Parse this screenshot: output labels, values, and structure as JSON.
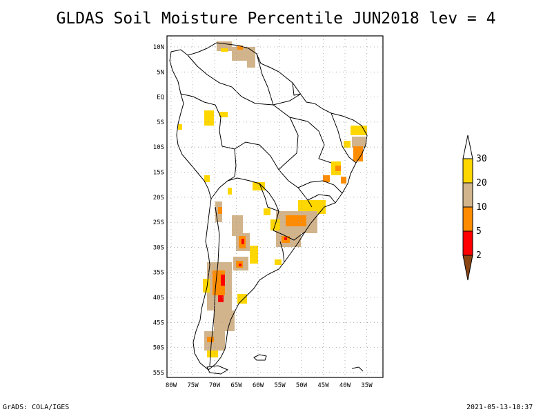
{
  "title": "GLDAS Soil Moisture Percentile JUN2018 lev = 4",
  "footer": {
    "left": "GrADS: COLA/IGES",
    "right": "2021-05-13-18:37"
  },
  "axes": {
    "x_ticks": [
      "80W",
      "75W",
      "70W",
      "65W",
      "60W",
      "55W",
      "50W",
      "45W",
      "40W",
      "35W"
    ],
    "y_ticks": [
      "10N",
      "5N",
      "EQ",
      "5S",
      "10S",
      "15S",
      "20S",
      "25S",
      "30S",
      "35S",
      "40S",
      "45S",
      "50S",
      "55S"
    ],
    "lon_range": [
      -80,
      -33
    ],
    "lat_range": [
      -56,
      12
    ],
    "grid": "dotted"
  },
  "legend": {
    "labels": [
      "30",
      "20",
      "10",
      "5",
      "2"
    ],
    "colors": {
      "above_30": "#ffffff",
      "20_30": "#ffd700",
      "10_20": "#d2b48c",
      "5_10": "#ff8c00",
      "2_5": "#ff0000",
      "below_2": "#8b4513"
    }
  },
  "colors": {
    "yellow": "#ffd700",
    "tan": "#d2b48c",
    "orange": "#ff8c00",
    "red": "#ff0000"
  }
}
